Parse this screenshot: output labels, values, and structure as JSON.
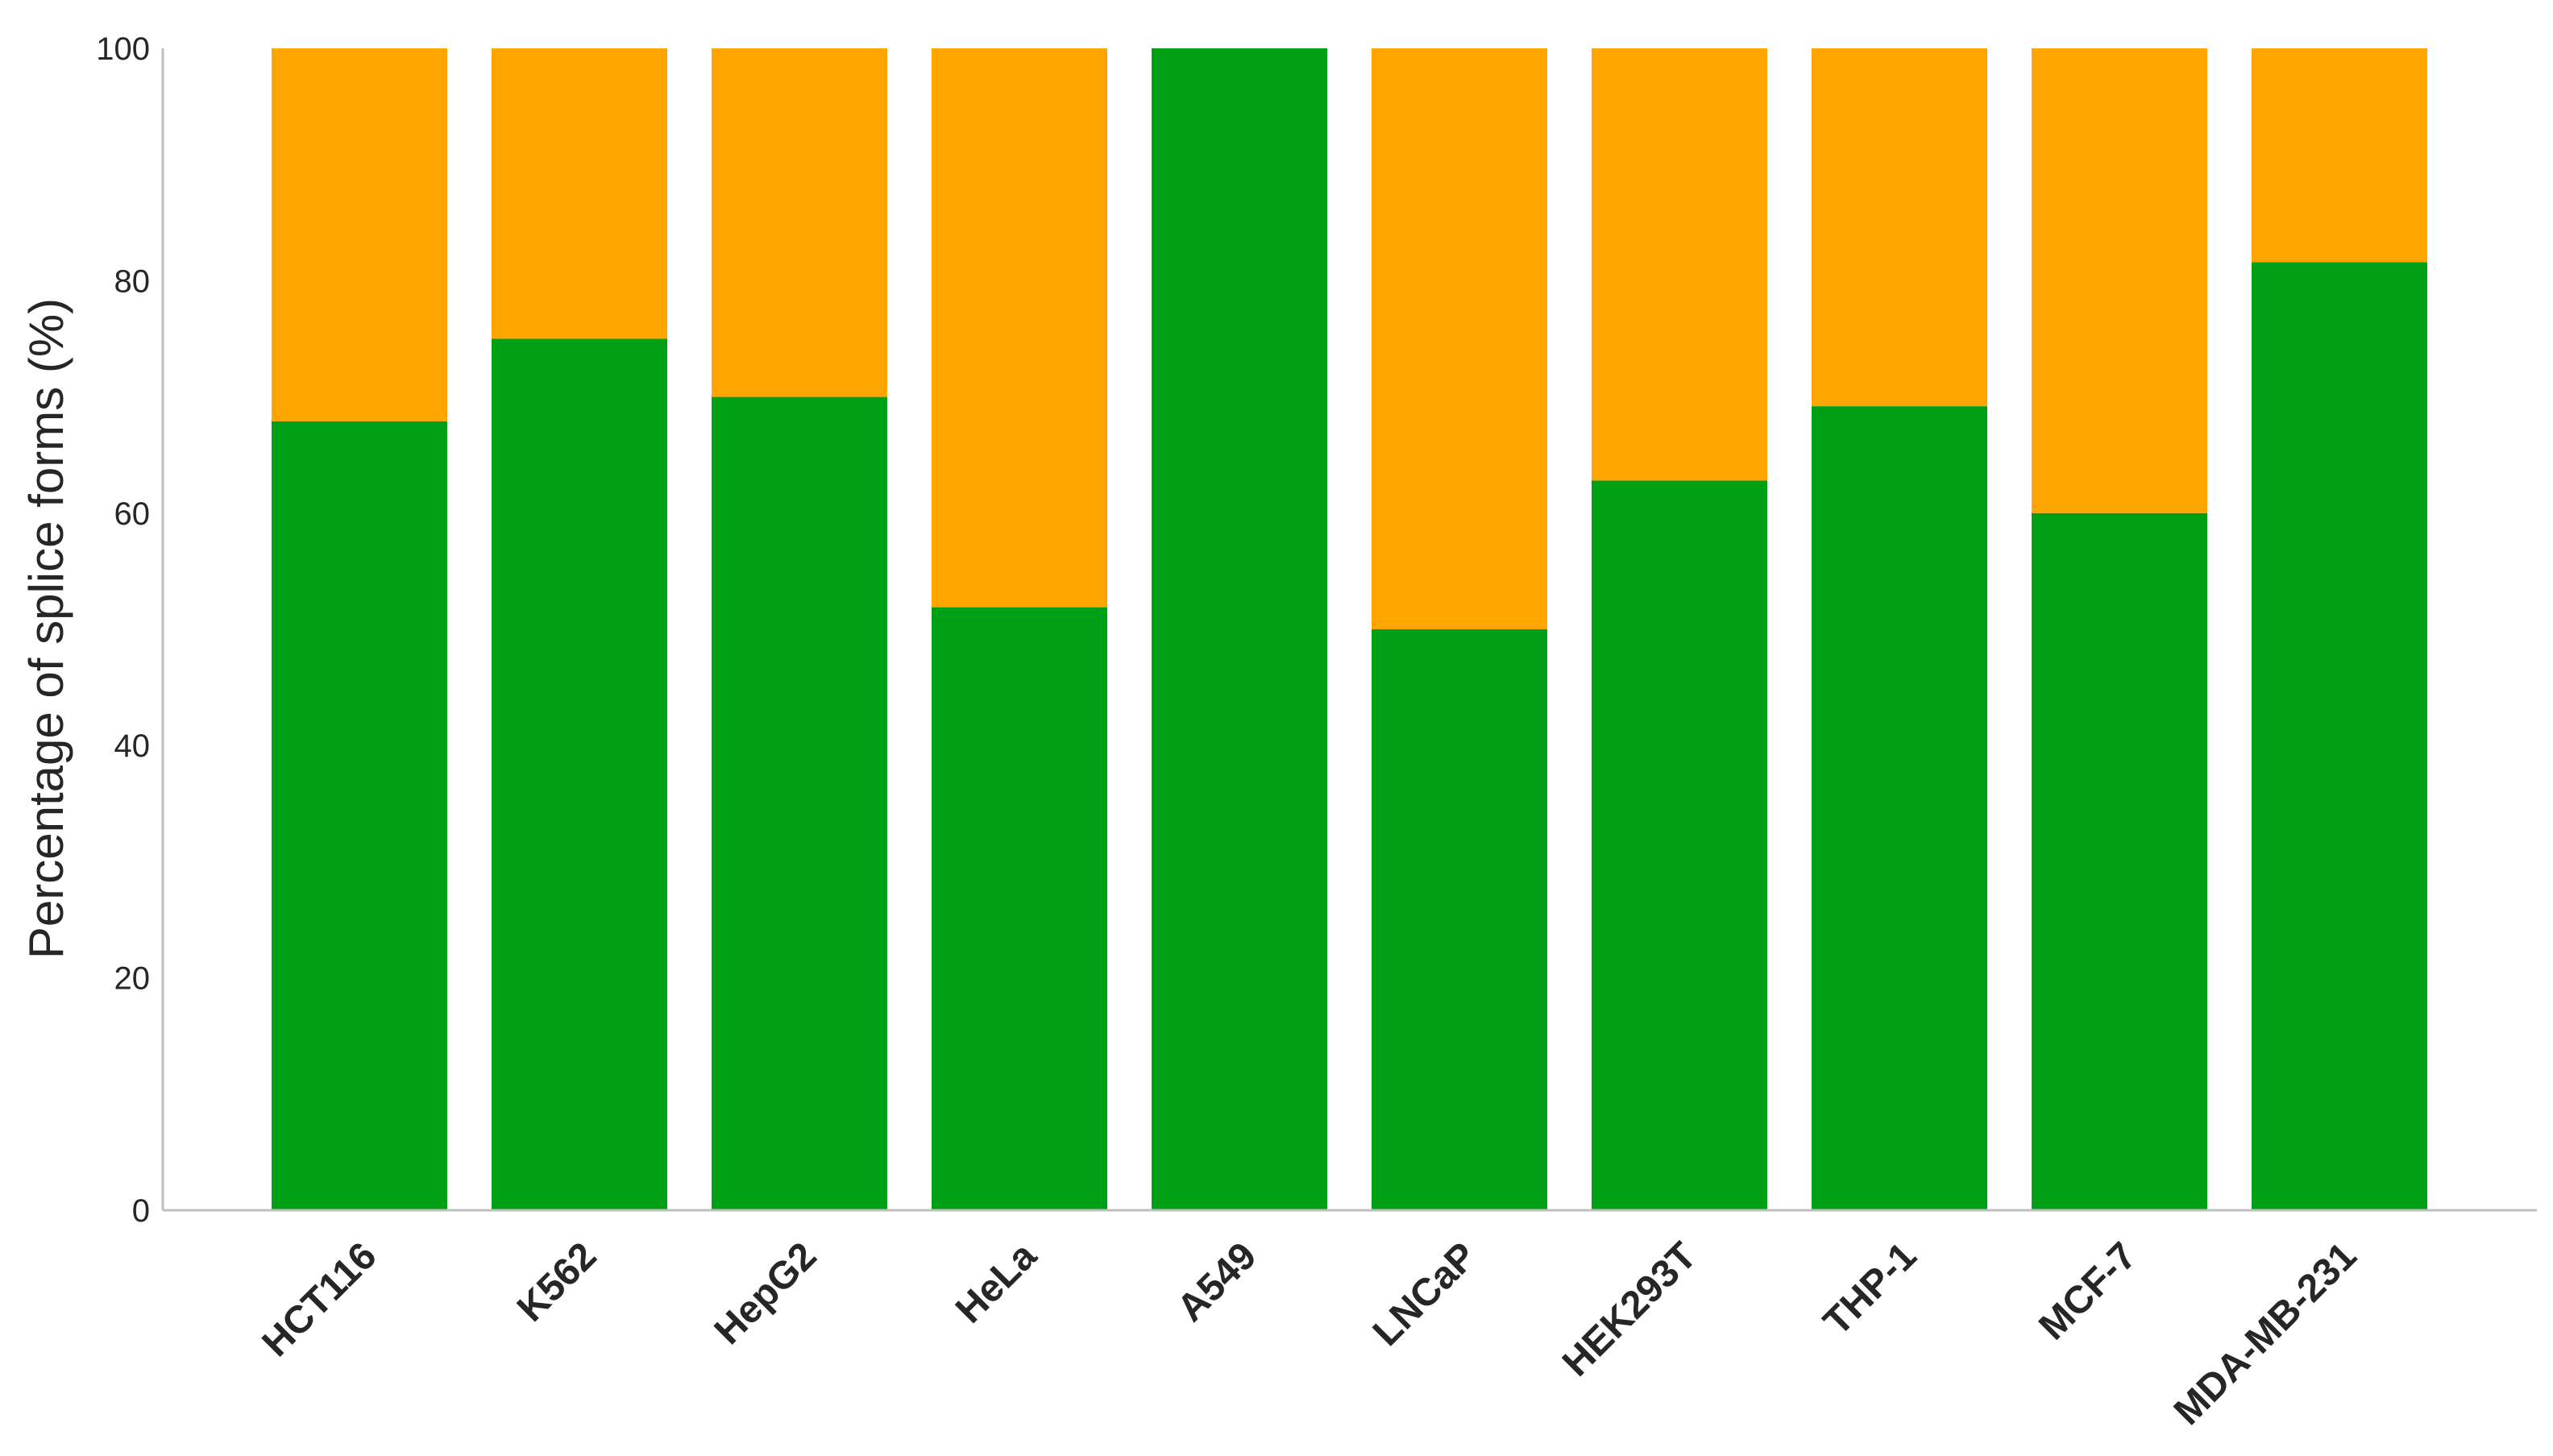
{
  "chart_data": {
    "type": "bar",
    "stacked": true,
    "categories": [
      "HCT116",
      "K562",
      "HepG2",
      "HeLa",
      "A549",
      "LNCaP",
      "HEK293T",
      "THP-1",
      "MCF-7",
      "MDA-MB-231"
    ],
    "series": [
      {
        "color": "#00a016",
        "values": [
          67.9,
          75.0,
          70.0,
          51.9,
          100.0,
          50.0,
          62.8,
          69.2,
          60.0,
          81.6
        ]
      },
      {
        "color": "#ffa500",
        "values": [
          32.1,
          25.0,
          30.0,
          48.1,
          0.0,
          50.0,
          37.2,
          30.8,
          40.0,
          18.4
        ]
      }
    ],
    "title": "",
    "xlabel": "",
    "ylabel": "Percentage of splice forms (%)",
    "ylim": [
      0,
      100
    ],
    "yticks": [
      "0",
      "20",
      "40",
      "60",
      "80",
      "100"
    ],
    "grid": false,
    "legend": "none"
  }
}
